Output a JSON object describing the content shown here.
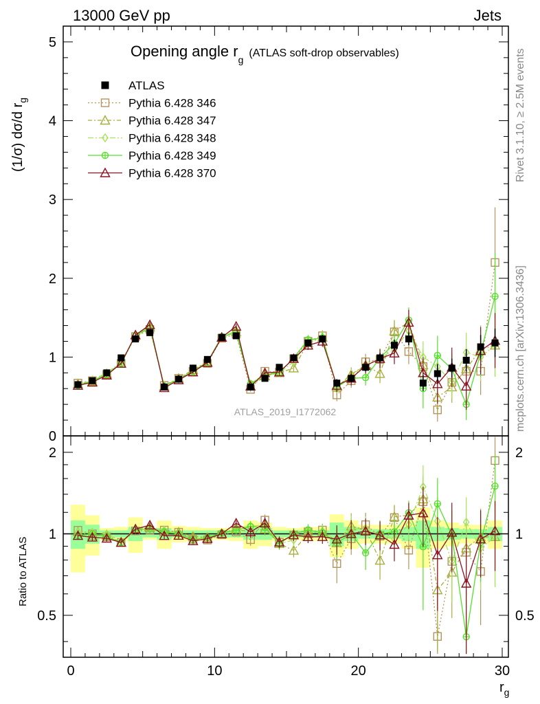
{
  "header": {
    "left": "13000 GeV pp",
    "right": "Jets"
  },
  "title": {
    "main": "Opening angle r",
    "main_sub": "g",
    "suffix": "(ATLAS soft-drop observables)"
  },
  "watermark": "ATLAS_2019_I1772062",
  "side_text": {
    "rivet": "Rivet 3.1.10, ≥ 2.5M events",
    "mcplots": "mcplots.cern.ch [arXiv:1306.3436]"
  },
  "main_ylabel": "(1/σ) dσ/d r",
  "main_ylabel_sub": "g",
  "ratio_ylabel": "Ratio to ATLAS",
  "xlabel": "r",
  "xlabel_sub": "g",
  "colors": {
    "data": "#000000",
    "p346": "#b5935a",
    "p347": "#a8ad3a",
    "p348": "#a6e35a",
    "p349": "#55e02a",
    "p370": "#8b1020",
    "band_yellow": "#ffff99",
    "band_green": "#99ff99"
  },
  "chart_data": {
    "type": "scatter",
    "xlim": [
      0,
      30
    ],
    "ylim_main": [
      0,
      5.2
    ],
    "ylim_ratio": [
      0.35,
      2.3
    ],
    "xticks": [
      "0",
      "10",
      "20",
      "30"
    ],
    "yticks_main": [
      "0",
      "1",
      "2",
      "3",
      "4",
      "5"
    ],
    "yticks_ratio": [
      "0.5",
      "1",
      "2"
    ],
    "x": [
      0.5,
      1.5,
      2.5,
      3.5,
      4.5,
      5.5,
      6.5,
      7.5,
      8.5,
      9.5,
      10.5,
      11.5,
      12.5,
      13.5,
      14.5,
      15.5,
      16.5,
      17.5,
      18.5,
      19.5,
      20.5,
      21.5,
      22.5,
      23.5,
      24.5,
      25.5,
      26.5,
      27.5,
      28.5,
      29.5
    ],
    "legend": [
      {
        "key": "atlas",
        "label": "ATLAS"
      },
      {
        "key": "p346",
        "label": "Pythia 6.428 346"
      },
      {
        "key": "p347",
        "label": "Pythia 6.428 347"
      },
      {
        "key": "p348",
        "label": "Pythia 6.428 348"
      },
      {
        "key": "p349",
        "label": "Pythia 6.428 349"
      },
      {
        "key": "p370",
        "label": "Pythia 6.428 370"
      }
    ],
    "data": {
      "name": "ATLAS",
      "values": [
        0.65,
        0.7,
        0.8,
        0.99,
        1.23,
        1.31,
        0.62,
        0.72,
        0.86,
        0.97,
        1.25,
        1.27,
        0.62,
        0.73,
        0.87,
        0.99,
        1.18,
        1.23,
        0.67,
        0.73,
        0.87,
        0.99,
        1.15,
        1.23,
        0.67,
        0.79,
        0.86,
        0.96,
        1.13,
        1.18
      ],
      "errors": [
        0.02,
        0.02,
        0.02,
        0.02,
        0.03,
        0.03,
        0.02,
        0.02,
        0.02,
        0.02,
        0.03,
        0.03,
        0.02,
        0.02,
        0.03,
        0.03,
        0.04,
        0.05,
        0.05,
        0.05,
        0.05,
        0.06,
        0.07,
        0.08,
        0.1,
        0.12,
        0.12,
        0.14,
        0.15,
        0.18
      ],
      "band_yellow_half": [
        0.28,
        0.17,
        0.05,
        0.06,
        0.15,
        0.05,
        0.12,
        0.07,
        0.06,
        0.05,
        0.05,
        0.06,
        0.12,
        0.1,
        0.06,
        0.05,
        0.06,
        0.06,
        0.18,
        0.12,
        0.08,
        0.08,
        0.08,
        0.12,
        0.25,
        0.12,
        0.1,
        0.08,
        0.08,
        0.12
      ],
      "band_green_half": [
        0.12,
        0.08,
        0.03,
        0.03,
        0.06,
        0.03,
        0.05,
        0.03,
        0.03,
        0.03,
        0.03,
        0.03,
        0.05,
        0.05,
        0.03,
        0.03,
        0.03,
        0.03,
        0.1,
        0.06,
        0.04,
        0.04,
        0.04,
        0.06,
        0.12,
        0.06,
        0.05,
        0.04,
        0.04,
        0.06
      ]
    },
    "series": [
      {
        "name": "Pythia 6.428 346",
        "key": "p346",
        "marker": "square-open",
        "dash": "2,3",
        "values": [
          0.67,
          0.7,
          0.78,
          0.92,
          1.26,
          1.35,
          0.64,
          0.73,
          0.82,
          0.92,
          1.24,
          1.29,
          0.59,
          0.82,
          0.81,
          0.98,
          1.2,
          1.27,
          0.52,
          0.7,
          0.94,
          0.97,
          1.32,
          1.07,
          0.88,
          0.33,
          0.68,
          0.82,
          0.82,
          2.2
        ],
        "errors": [
          0.02,
          0.02,
          0.02,
          0.02,
          0.03,
          0.03,
          0.02,
          0.02,
          0.02,
          0.03,
          0.03,
          0.03,
          0.03,
          0.04,
          0.04,
          0.05,
          0.06,
          0.07,
          0.08,
          0.09,
          0.1,
          0.12,
          0.14,
          0.16,
          0.2,
          0.15,
          0.2,
          0.25,
          0.3,
          0.7
        ]
      },
      {
        "name": "Pythia 6.428 347",
        "key": "p347",
        "marker": "triangle-open",
        "dash": "6,3,2,3",
        "values": [
          0.66,
          0.69,
          0.79,
          0.92,
          1.28,
          1.38,
          0.63,
          0.73,
          0.84,
          0.94,
          1.25,
          1.32,
          0.63,
          0.76,
          0.8,
          0.86,
          1.18,
          1.25,
          0.62,
          0.78,
          0.9,
          0.79,
          1.33,
          1.44,
          0.9,
          0.49,
          0.62,
          0.85,
          1.1,
          1.15
        ],
        "errors": [
          0.02,
          0.02,
          0.02,
          0.02,
          0.03,
          0.03,
          0.02,
          0.02,
          0.02,
          0.03,
          0.03,
          0.03,
          0.03,
          0.04,
          0.04,
          0.05,
          0.06,
          0.07,
          0.08,
          0.09,
          0.1,
          0.12,
          0.14,
          0.16,
          0.2,
          0.2,
          0.2,
          0.25,
          0.3,
          0.4
        ]
      },
      {
        "name": "Pythia 6.428 348",
        "key": "p348",
        "marker": "diamond-open",
        "dash": "8,3,2,3",
        "values": [
          0.66,
          0.71,
          0.8,
          0.93,
          1.28,
          1.39,
          0.64,
          0.72,
          0.81,
          0.93,
          1.25,
          1.34,
          0.66,
          0.79,
          0.8,
          0.94,
          1.2,
          1.26,
          0.63,
          0.76,
          0.91,
          0.98,
          1.1,
          1.33,
          1.0,
          0.88,
          0.68,
          1.06,
          1.0,
          1.15
        ],
        "errors": [
          0.02,
          0.02,
          0.02,
          0.02,
          0.03,
          0.03,
          0.02,
          0.02,
          0.02,
          0.03,
          0.03,
          0.03,
          0.03,
          0.04,
          0.04,
          0.05,
          0.06,
          0.07,
          0.08,
          0.09,
          0.1,
          0.12,
          0.14,
          0.16,
          0.2,
          0.2,
          0.2,
          0.25,
          0.3,
          0.4
        ]
      },
      {
        "name": "Pythia 6.428 349",
        "key": "p349",
        "marker": "circle-cross",
        "dash": "",
        "values": [
          0.64,
          0.7,
          0.78,
          0.92,
          1.27,
          1.37,
          0.63,
          0.72,
          0.82,
          0.94,
          1.26,
          1.31,
          0.66,
          0.77,
          0.8,
          0.99,
          1.22,
          1.24,
          0.62,
          0.73,
          0.74,
          0.99,
          1.17,
          1.47,
          0.6,
          1.02,
          0.85,
          0.4,
          1.05,
          1.77
        ],
        "errors": [
          0.02,
          0.02,
          0.02,
          0.02,
          0.03,
          0.03,
          0.02,
          0.02,
          0.02,
          0.03,
          0.03,
          0.03,
          0.03,
          0.04,
          0.04,
          0.05,
          0.06,
          0.07,
          0.08,
          0.09,
          0.1,
          0.12,
          0.14,
          0.16,
          0.25,
          0.25,
          0.2,
          0.2,
          0.3,
          0.55
        ]
      },
      {
        "name": "Pythia 6.428 370",
        "key": "p370",
        "marker": "triangle-open",
        "dash": "",
        "values": [
          0.64,
          0.68,
          0.77,
          0.92,
          1.28,
          1.41,
          0.61,
          0.71,
          0.81,
          0.93,
          1.25,
          1.39,
          0.63,
          0.8,
          0.81,
          0.98,
          1.15,
          1.2,
          0.64,
          0.73,
          0.89,
          0.98,
          1.05,
          1.44,
          0.8,
          0.66,
          0.87,
          0.63,
          1.08,
          1.21
        ],
        "errors": [
          0.02,
          0.02,
          0.02,
          0.02,
          0.03,
          0.03,
          0.02,
          0.02,
          0.02,
          0.03,
          0.03,
          0.03,
          0.03,
          0.04,
          0.04,
          0.05,
          0.06,
          0.07,
          0.08,
          0.09,
          0.1,
          0.12,
          0.14,
          0.16,
          0.2,
          0.25,
          0.25,
          0.3,
          0.3,
          0.35
        ]
      }
    ]
  }
}
